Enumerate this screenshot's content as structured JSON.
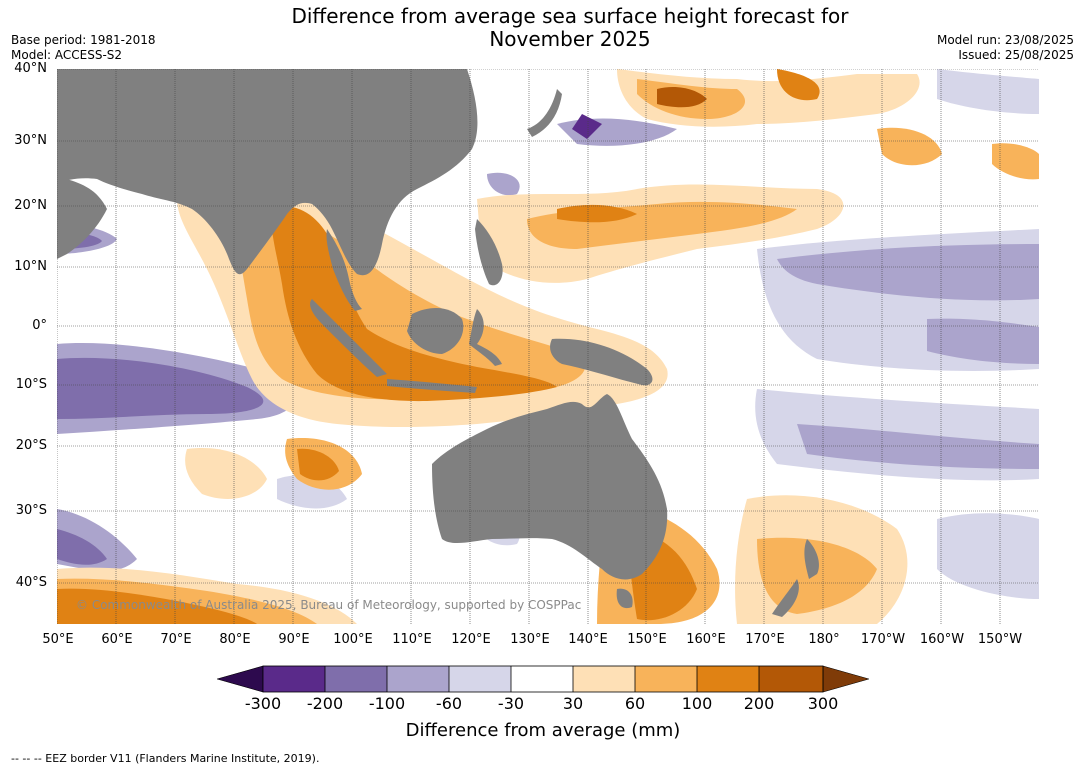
{
  "title_line1": "Difference from average sea surface height forecast for",
  "title_line2": "November 2025",
  "meta_left": {
    "base_period": "Base period: 1981-2018",
    "model": "Model: ACCESS-S2"
  },
  "meta_right": {
    "model_run": "Model run: 23/08/2025",
    "issued": "Issued: 25/08/2025"
  },
  "copyright": "© Commonwealth of Australia 2025, Bureau of Meteorology, supported by COSPPac",
  "lat_labels": [
    "40°N",
    "30°N",
    "20°N",
    "10°N",
    "0°",
    "10°S",
    "20°S",
    "30°S",
    "40°S"
  ],
  "lon_labels": [
    "50°E",
    "60°E",
    "70°E",
    "80°E",
    "90°E",
    "100°E",
    "110°E",
    "120°E",
    "130°E",
    "140°E",
    "150°E",
    "160°E",
    "170°E",
    "180°",
    "170°W",
    "160°W",
    "150°W"
  ],
  "colorbar": {
    "label": "Difference from average (mm)",
    "ticks": [
      "-300",
      "-200",
      "-100",
      "-60",
      "-30",
      "30",
      "60",
      "100",
      "200",
      "300"
    ],
    "colors": {
      "below_-300": "#2d0a4e",
      "-300_-200": "#5a2a8a",
      "-200_-100": "#7f6eab",
      "-100_-60": "#aba4cc",
      "-60_-30": "#d6d6e9",
      "-30_30": "#ffffff",
      "30_60": "#fee0b6",
      "60_100": "#f8b35a",
      "100_200": "#e08214",
      "200_300": "#b35806",
      "above_300": "#7f3b08"
    }
  },
  "land_color": "#808080",
  "footer": "--  --  -- EEZ border V11 (Flanders Marine Institute, 2019)."
}
